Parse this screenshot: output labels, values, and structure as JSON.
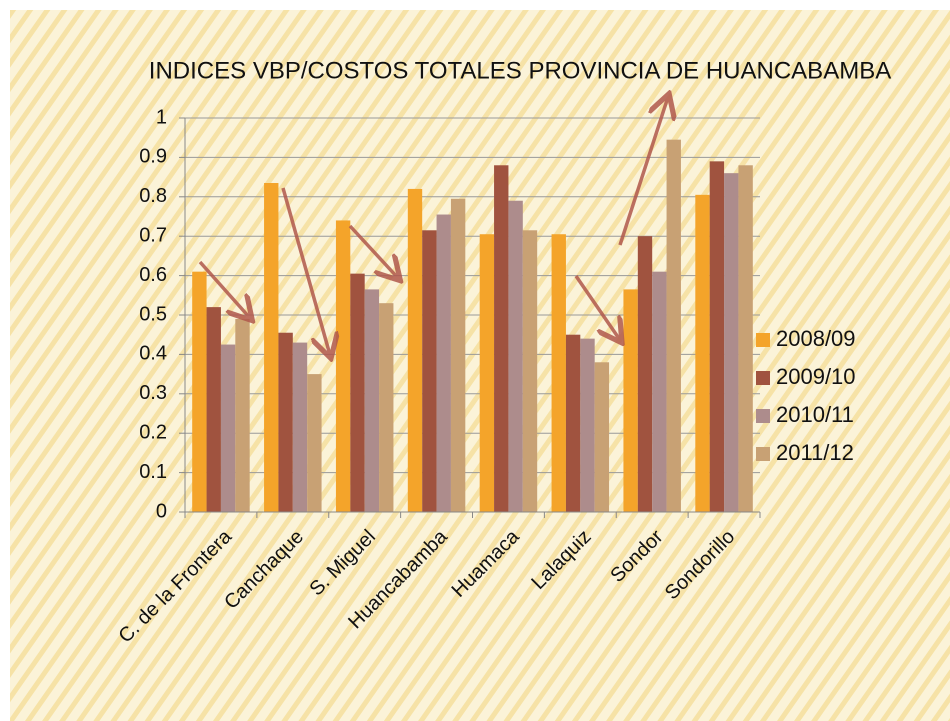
{
  "chart_data": {
    "type": "bar",
    "title": "INDICES  VBP/COSTOS TOTALES PROVINCIA DE HUANCABAMBA",
    "categories": [
      "C. de la Frontera",
      "Canchaque",
      "S. Miguel",
      "Huancabamba",
      "Huamaca",
      "Lalaquiz",
      "Sondor",
      "Sondorillo"
    ],
    "series": [
      {
        "name": "2008/09",
        "color": "#f4a42a",
        "values": [
          0.61,
          0.835,
          0.74,
          0.82,
          0.705,
          0.705,
          0.565,
          0.805
        ]
      },
      {
        "name": "2009/10",
        "color": "#a0533f",
        "values": [
          0.52,
          0.455,
          0.605,
          0.715,
          0.88,
          0.45,
          0.7,
          0.89
        ]
      },
      {
        "name": "2010/11",
        "color": "#ad8c8c",
        "values": [
          0.425,
          0.43,
          0.565,
          0.755,
          0.79,
          0.44,
          0.61,
          0.86
        ]
      },
      {
        "name": "2011/12",
        "color": "#c8a174",
        "values": [
          0.49,
          0.35,
          0.53,
          0.795,
          0.715,
          0.38,
          0.945,
          0.88
        ]
      }
    ],
    "ylim": [
      0,
      1
    ],
    "yticks": [
      0,
      0.1,
      0.2,
      0.3,
      0.4,
      0.5,
      0.6,
      0.7,
      0.8,
      0.9,
      1
    ],
    "grid": true,
    "legend": "right"
  }
}
